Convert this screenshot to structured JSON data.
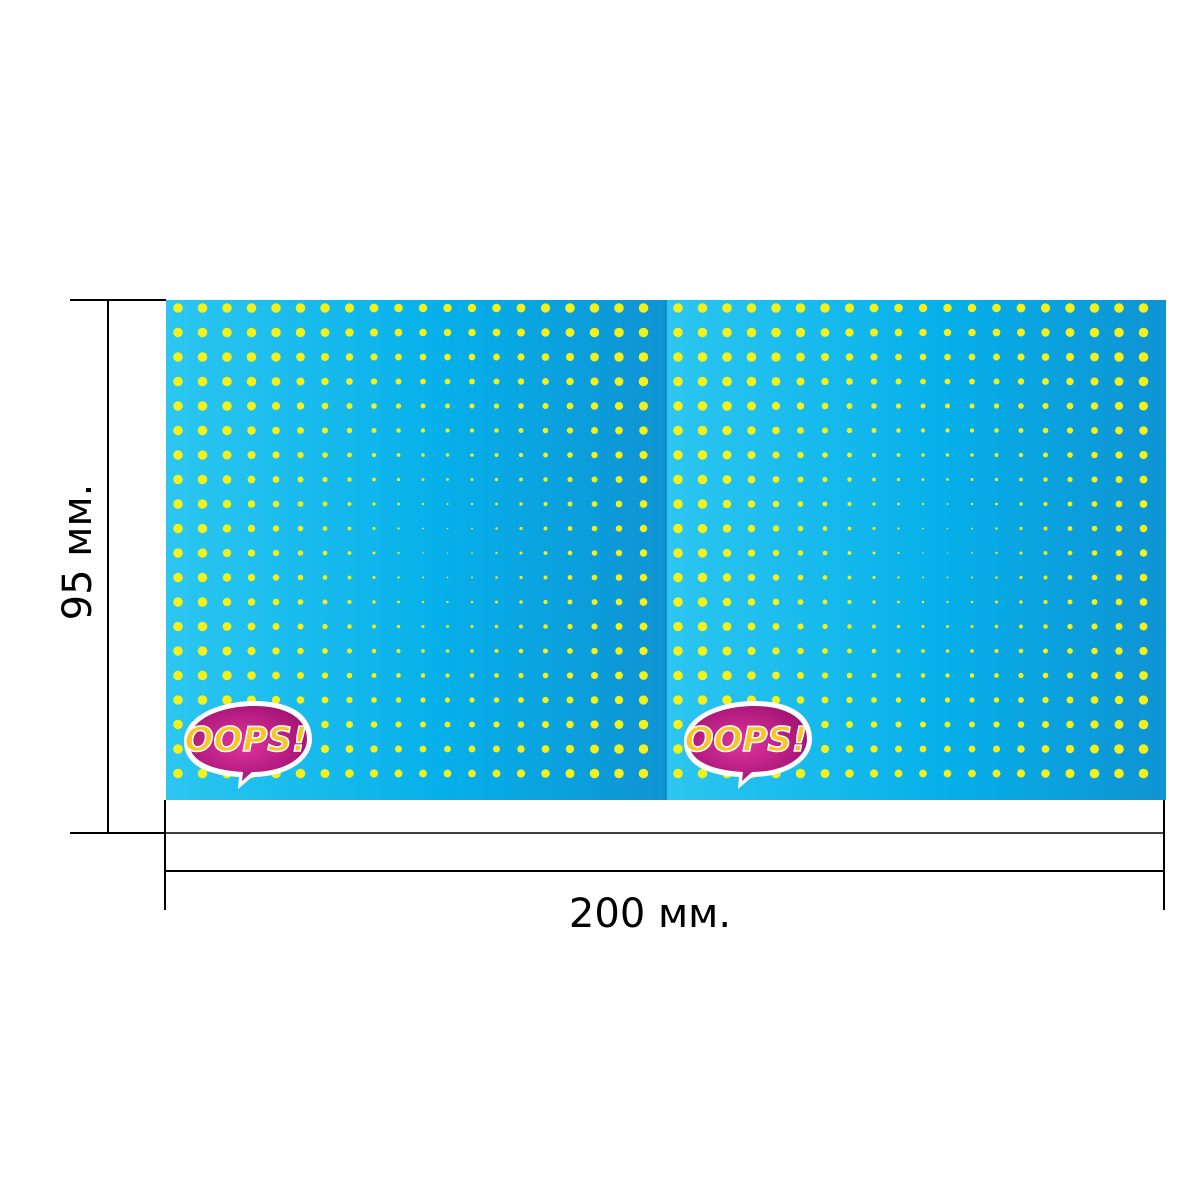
{
  "dimensions": {
    "width_label": "200 мм.",
    "height_label": "95 мм."
  },
  "panels": [
    {
      "name": "left-panel",
      "logo_text": "OOPS!"
    },
    {
      "name": "right-panel",
      "logo_text": "OOPS!"
    }
  ],
  "colors": {
    "panel_light": "#2bc2ee",
    "panel_dark": "#0f93d3",
    "dot": "#f4f01a",
    "bubble_magenta": "#b5197f",
    "bubble_yellow": "#f7c623",
    "line": "#000000"
  },
  "icons": [
    "oops-speech-bubble-icon"
  ]
}
